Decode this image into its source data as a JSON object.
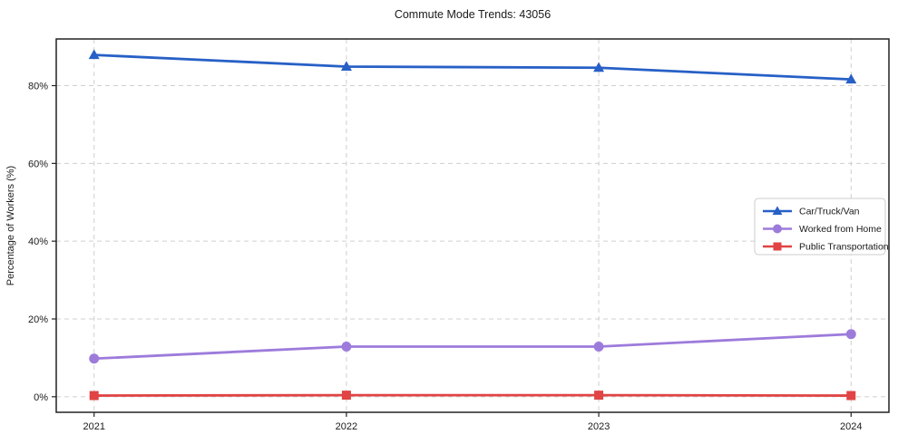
{
  "title": "Commute Mode Trends: 43056",
  "chart_data": {
    "type": "line",
    "title": "Commute Mode Trends: 43056",
    "xlabel": "",
    "ylabel": "Percentage of Workers (%)",
    "x": [
      2021,
      2022,
      2023,
      2024
    ],
    "xtick_labels": [
      "2021",
      "2022",
      "2023",
      "2024"
    ],
    "yticks": [
      0,
      20,
      40,
      60,
      80
    ],
    "ytick_labels": [
      "0%",
      "20%",
      "40%",
      "60%",
      "80%"
    ],
    "ylim": [
      -4,
      92
    ],
    "grid": true,
    "grid_style": "dashed",
    "legend_position": "middle-right",
    "series": [
      {
        "name": "Car/Truck/Van",
        "values": [
          87.9,
          84.9,
          84.6,
          81.6
        ],
        "color": "#2760c6",
        "marker": "triangle"
      },
      {
        "name": "Worked from Home",
        "values": [
          9.8,
          12.9,
          12.9,
          16.1
        ],
        "color": "#9d7bdb",
        "marker": "circle"
      },
      {
        "name": "Public Transportation",
        "values": [
          0.3,
          0.4,
          0.4,
          0.3
        ],
        "color": "#e04444",
        "marker": "square"
      }
    ],
    "colors": {
      "spine": "#222222",
      "grid": "#cfcfcf",
      "text": "#1a1a1a",
      "legend_border": "#cccccc",
      "legend_bg": "#ffffff"
    }
  }
}
